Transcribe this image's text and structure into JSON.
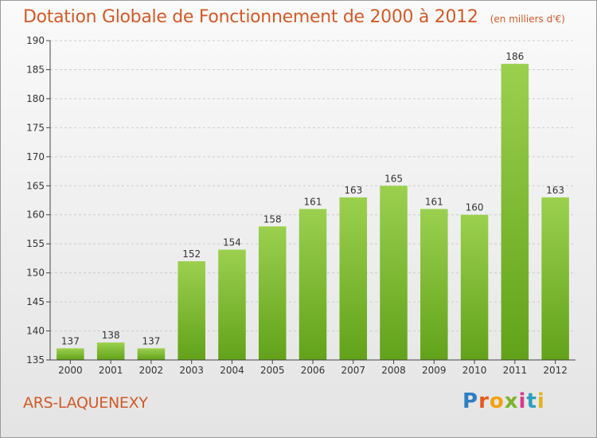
{
  "header": {
    "title": "Dotation Globale de Fonctionnement de 2000 à 2012",
    "subtitle": "(en milliers d'€)"
  },
  "footer": {
    "commune": "ARS-LAQUENEXY",
    "logo_text": "Proxiti"
  },
  "colors": {
    "title": "#d05a28",
    "bar_top": "#9bd04f",
    "bar_bottom": "#62a21a",
    "axis": "#444444",
    "grid": "#cccccc"
  },
  "chart_data": {
    "type": "bar",
    "title": "Dotation Globale de Fonctionnement de 2000 à 2012",
    "subtitle": "(en milliers d'€)",
    "categories": [
      "2000",
      "2001",
      "2002",
      "2003",
      "2004",
      "2005",
      "2006",
      "2007",
      "2008",
      "2009",
      "2010",
      "2011",
      "2012"
    ],
    "values": [
      137,
      138,
      137,
      152,
      154,
      158,
      161,
      163,
      165,
      161,
      160,
      186,
      163
    ],
    "ylim": [
      135,
      190
    ],
    "yticks": [
      135,
      140,
      145,
      150,
      155,
      160,
      165,
      170,
      175,
      180,
      185,
      190
    ],
    "grid": true,
    "data_labels": true
  }
}
